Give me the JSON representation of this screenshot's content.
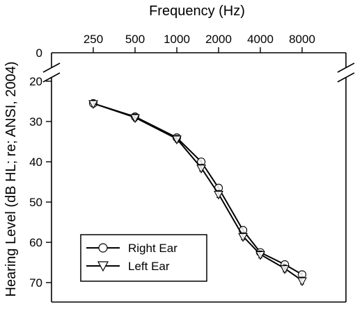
{
  "chart_data": {
    "type": "line",
    "xlabel": "Frequency (Hz)",
    "ylabel": "Hearing Level (dB HL; re; ANSI, 2004)",
    "x_scale": "log",
    "x_ticks": [
      250,
      500,
      1000,
      2000,
      4000,
      8000
    ],
    "y_ticks": [
      0,
      20,
      30,
      40,
      50,
      60,
      70
    ],
    "y_axis_inverted": true,
    "y_axis_break": [
      0,
      20
    ],
    "ylim": [
      20,
      75
    ],
    "x": [
      250,
      500,
      1000,
      1500,
      2000,
      3000,
      4000,
      6000,
      8000
    ],
    "series": [
      {
        "name": "Right Ear",
        "marker": "circle",
        "values": [
          25.5,
          28.8,
          34.0,
          40.0,
          46.5,
          57.0,
          62.5,
          65.5,
          68.0
        ]
      },
      {
        "name": "Left Ear",
        "marker": "triangle-down",
        "values": [
          25.5,
          29.0,
          34.3,
          41.5,
          48.0,
          58.5,
          63.0,
          66.5,
          69.5
        ]
      }
    ],
    "legend_position": "bottom-left",
    "grid": false
  }
}
